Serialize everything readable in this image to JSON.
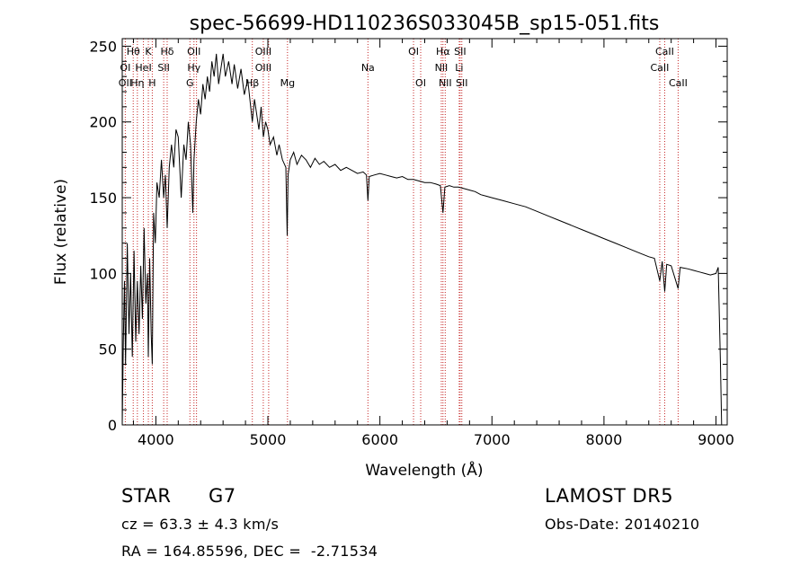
{
  "chart_data": {
    "type": "line",
    "title": "spec-56699-HD110236S033045B_sp15-051.fits",
    "xlabel": "Wavelength (Å)",
    "ylabel": "Flux (relative)",
    "xlim": [
      3700,
      9100
    ],
    "ylim": [
      0,
      255
    ],
    "xticks": [
      4000,
      5000,
      6000,
      7000,
      8000,
      9000
    ],
    "yticks": [
      0,
      50,
      100,
      150,
      200,
      250
    ],
    "grid": false,
    "line_color": "#000000",
    "marker_color": "#c62828",
    "spectrum_points": [
      [
        3700,
        0
      ],
      [
        3710,
        55
      ],
      [
        3720,
        95
      ],
      [
        3730,
        40
      ],
      [
        3745,
        120
      ],
      [
        3760,
        60
      ],
      [
        3775,
        100
      ],
      [
        3790,
        45
      ],
      [
        3805,
        115
      ],
      [
        3820,
        55
      ],
      [
        3835,
        95
      ],
      [
        3850,
        60
      ],
      [
        3865,
        105
      ],
      [
        3880,
        70
      ],
      [
        3895,
        130
      ],
      [
        3910,
        80
      ],
      [
        3925,
        100
      ],
      [
        3933,
        45
      ],
      [
        3945,
        110
      ],
      [
        3958,
        60
      ],
      [
        3968,
        40
      ],
      [
        3980,
        140
      ],
      [
        3995,
        120
      ],
      [
        4010,
        160
      ],
      [
        4030,
        150
      ],
      [
        4050,
        175
      ],
      [
        4070,
        150
      ],
      [
        4085,
        165
      ],
      [
        4101,
        130
      ],
      [
        4120,
        170
      ],
      [
        4140,
        185
      ],
      [
        4160,
        170
      ],
      [
        4180,
        195
      ],
      [
        4200,
        190
      ],
      [
        4226,
        150
      ],
      [
        4250,
        185
      ],
      [
        4270,
        175
      ],
      [
        4290,
        200
      ],
      [
        4310,
        185
      ],
      [
        4330,
        140
      ],
      [
        4340,
        175
      ],
      [
        4360,
        200
      ],
      [
        4380,
        215
      ],
      [
        4400,
        205
      ],
      [
        4420,
        225
      ],
      [
        4440,
        215
      ],
      [
        4460,
        230
      ],
      [
        4480,
        220
      ],
      [
        4500,
        240
      ],
      [
        4520,
        230
      ],
      [
        4540,
        245
      ],
      [
        4560,
        225
      ],
      [
        4580,
        235
      ],
      [
        4600,
        245
      ],
      [
        4620,
        230
      ],
      [
        4650,
        240
      ],
      [
        4680,
        225
      ],
      [
        4700,
        238
      ],
      [
        4730,
        222
      ],
      [
        4760,
        235
      ],
      [
        4790,
        218
      ],
      [
        4820,
        228
      ],
      [
        4861,
        200
      ],
      [
        4880,
        215
      ],
      [
        4900,
        205
      ],
      [
        4920,
        195
      ],
      [
        4940,
        210
      ],
      [
        4960,
        190
      ],
      [
        4980,
        200
      ],
      [
        5000,
        195
      ],
      [
        5020,
        185
      ],
      [
        5050,
        190
      ],
      [
        5080,
        178
      ],
      [
        5100,
        185
      ],
      [
        5130,
        175
      ],
      [
        5160,
        170
      ],
      [
        5172,
        125
      ],
      [
        5180,
        165
      ],
      [
        5200,
        175
      ],
      [
        5230,
        180
      ],
      [
        5260,
        172
      ],
      [
        5300,
        178
      ],
      [
        5340,
        175
      ],
      [
        5380,
        170
      ],
      [
        5420,
        176
      ],
      [
        5460,
        172
      ],
      [
        5500,
        174
      ],
      [
        5550,
        170
      ],
      [
        5600,
        172
      ],
      [
        5650,
        168
      ],
      [
        5700,
        170
      ],
      [
        5750,
        168
      ],
      [
        5800,
        166
      ],
      [
        5850,
        167
      ],
      [
        5880,
        165
      ],
      [
        5893,
        148
      ],
      [
        5905,
        164
      ],
      [
        5950,
        165
      ],
      [
        6000,
        166
      ],
      [
        6050,
        165
      ],
      [
        6100,
        164
      ],
      [
        6150,
        163
      ],
      [
        6200,
        164
      ],
      [
        6250,
        162
      ],
      [
        6300,
        162
      ],
      [
        6350,
        161
      ],
      [
        6400,
        160
      ],
      [
        6450,
        160
      ],
      [
        6500,
        159
      ],
      [
        6540,
        158
      ],
      [
        6563,
        140
      ],
      [
        6580,
        157
      ],
      [
        6620,
        158
      ],
      [
        6660,
        157
      ],
      [
        6700,
        157
      ],
      [
        6750,
        156
      ],
      [
        6800,
        155
      ],
      [
        6850,
        154
      ],
      [
        6900,
        152
      ],
      [
        6950,
        151
      ],
      [
        7000,
        150
      ],
      [
        7100,
        148
      ],
      [
        7200,
        146
      ],
      [
        7300,
        144
      ],
      [
        7400,
        141
      ],
      [
        7500,
        138
      ],
      [
        7600,
        135
      ],
      [
        7700,
        132
      ],
      [
        7800,
        129
      ],
      [
        7900,
        126
      ],
      [
        8000,
        123
      ],
      [
        8100,
        120
      ],
      [
        8200,
        117
      ],
      [
        8300,
        114
      ],
      [
        8400,
        111
      ],
      [
        8450,
        110
      ],
      [
        8498,
        95
      ],
      [
        8520,
        108
      ],
      [
        8542,
        88
      ],
      [
        8560,
        106
      ],
      [
        8600,
        105
      ],
      [
        8662,
        90
      ],
      [
        8680,
        104
      ],
      [
        8750,
        103
      ],
      [
        8800,
        102
      ],
      [
        8850,
        101
      ],
      [
        8900,
        100
      ],
      [
        8950,
        99
      ],
      [
        9000,
        100
      ],
      [
        9020,
        104
      ],
      [
        9040,
        40
      ],
      [
        9050,
        0
      ]
    ],
    "line_labels": [
      {
        "label": "Hθ",
        "wavelength": 3798
      },
      {
        "label": "K",
        "wavelength": 3933
      },
      {
        "label": "Hδ",
        "wavelength": 4101
      },
      {
        "label": "OII",
        "wavelength": 4340
      },
      {
        "label": "OIII",
        "wavelength": 4959
      },
      {
        "label": "OI",
        "wavelength": 6300
      },
      {
        "label": "Hα",
        "wavelength": 6563
      },
      {
        "label": "SII",
        "wavelength": 6716
      },
      {
        "label": "CaII",
        "wavelength": 8542
      },
      {
        "label": "OI",
        "wavelength": 3727
      },
      {
        "label": "HeI",
        "wavelength": 3889
      },
      {
        "label": "SII",
        "wavelength": 4070
      },
      {
        "label": "Hγ",
        "wavelength": 4340
      },
      {
        "label": "OIII",
        "wavelength": 4959
      },
      {
        "label": "Na",
        "wavelength": 5893
      },
      {
        "label": "NII",
        "wavelength": 6548
      },
      {
        "label": "Li",
        "wavelength": 6708
      },
      {
        "label": "CaII",
        "wavelength": 8498
      },
      {
        "label": "OII",
        "wavelength": 3727
      },
      {
        "label": "Hη",
        "wavelength": 3835
      },
      {
        "label": "H",
        "wavelength": 3968
      },
      {
        "label": "G",
        "wavelength": 4304
      },
      {
        "label": "Hβ",
        "wavelength": 4861
      },
      {
        "label": "Mg",
        "wavelength": 5175
      },
      {
        "label": "OI",
        "wavelength": 6364
      },
      {
        "label": "NII",
        "wavelength": 6583
      },
      {
        "label": "SII",
        "wavelength": 6731
      },
      {
        "label": "CaII",
        "wavelength": 8662
      }
    ],
    "line_markers": [
      3727,
      3798,
      3835,
      3889,
      3933,
      3968,
      4070,
      4101,
      4304,
      4340,
      4363,
      4861,
      4959,
      5007,
      5175,
      5893,
      6300,
      6364,
      6548,
      6563,
      6583,
      6708,
      6716,
      6731,
      8498,
      8542,
      8662
    ]
  },
  "info": {
    "object_class": "STAR",
    "subclass": "G7",
    "survey": "LAMOST DR5",
    "redshift": "cz = 63.3 ± 4.3 km/s",
    "obs_date": "Obs-Date: 20140210",
    "coords": "RA = 164.85596, DEC =  -2.71534"
  }
}
